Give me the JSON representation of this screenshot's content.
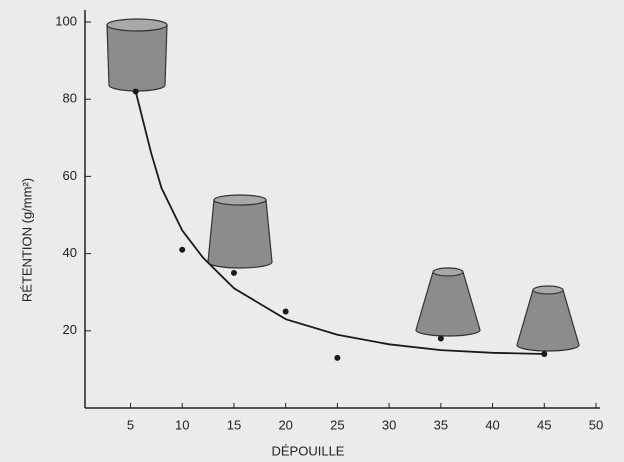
{
  "chart_data": {
    "type": "scatter",
    "xlabel": "DÉPOUILLE",
    "ylabel": "RÉTENTION (g/mm²)",
    "x": [
      5.5,
      10,
      15,
      20,
      25,
      35,
      45
    ],
    "values": [
      82,
      41,
      35,
      25,
      13,
      18,
      14
    ],
    "color": "#1a1a1a",
    "curve": {
      "x": [
        5.5,
        7,
        8,
        10,
        12,
        15,
        20,
        25,
        30,
        35,
        40,
        45
      ],
      "values": [
        82,
        66,
        57,
        46,
        39,
        31,
        23,
        19,
        16.5,
        15,
        14.3,
        14
      ],
      "color": "#1a1a1a"
    },
    "xlim": [
      0.6,
      50
    ],
    "ylim": [
      0,
      100
    ],
    "xticks": [
      5,
      10,
      15,
      20,
      25,
      30,
      35,
      40,
      45,
      50
    ],
    "yticks": [
      20,
      40,
      60,
      80,
      100
    ]
  }
}
